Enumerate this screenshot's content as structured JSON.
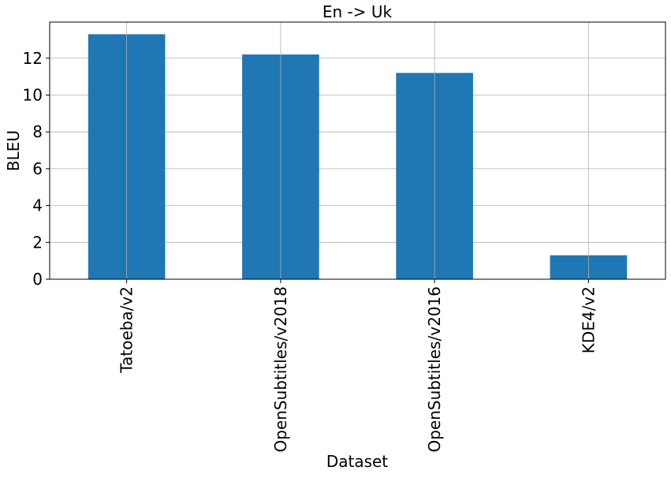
{
  "chart_data": {
    "type": "bar",
    "title": "En -> Uk",
    "xlabel": "Dataset",
    "ylabel": "BLEU",
    "categories": [
      "Tatoeba/v2",
      "OpenSubtitles/v2018",
      "OpenSubtitles/v2016",
      "KDE4/v2"
    ],
    "values": [
      13.3,
      12.2,
      11.2,
      1.3
    ],
    "ylim": [
      0,
      13.96
    ],
    "yticks": [
      0,
      2,
      4,
      6,
      8,
      10,
      12
    ],
    "ytick_labels": [
      "0",
      "2",
      "4",
      "6",
      "8",
      "10",
      "12"
    ],
    "grid": true,
    "colors": {
      "bar": "#1f77b4",
      "grid": "#b0b0b0",
      "axis": "#000000"
    }
  }
}
